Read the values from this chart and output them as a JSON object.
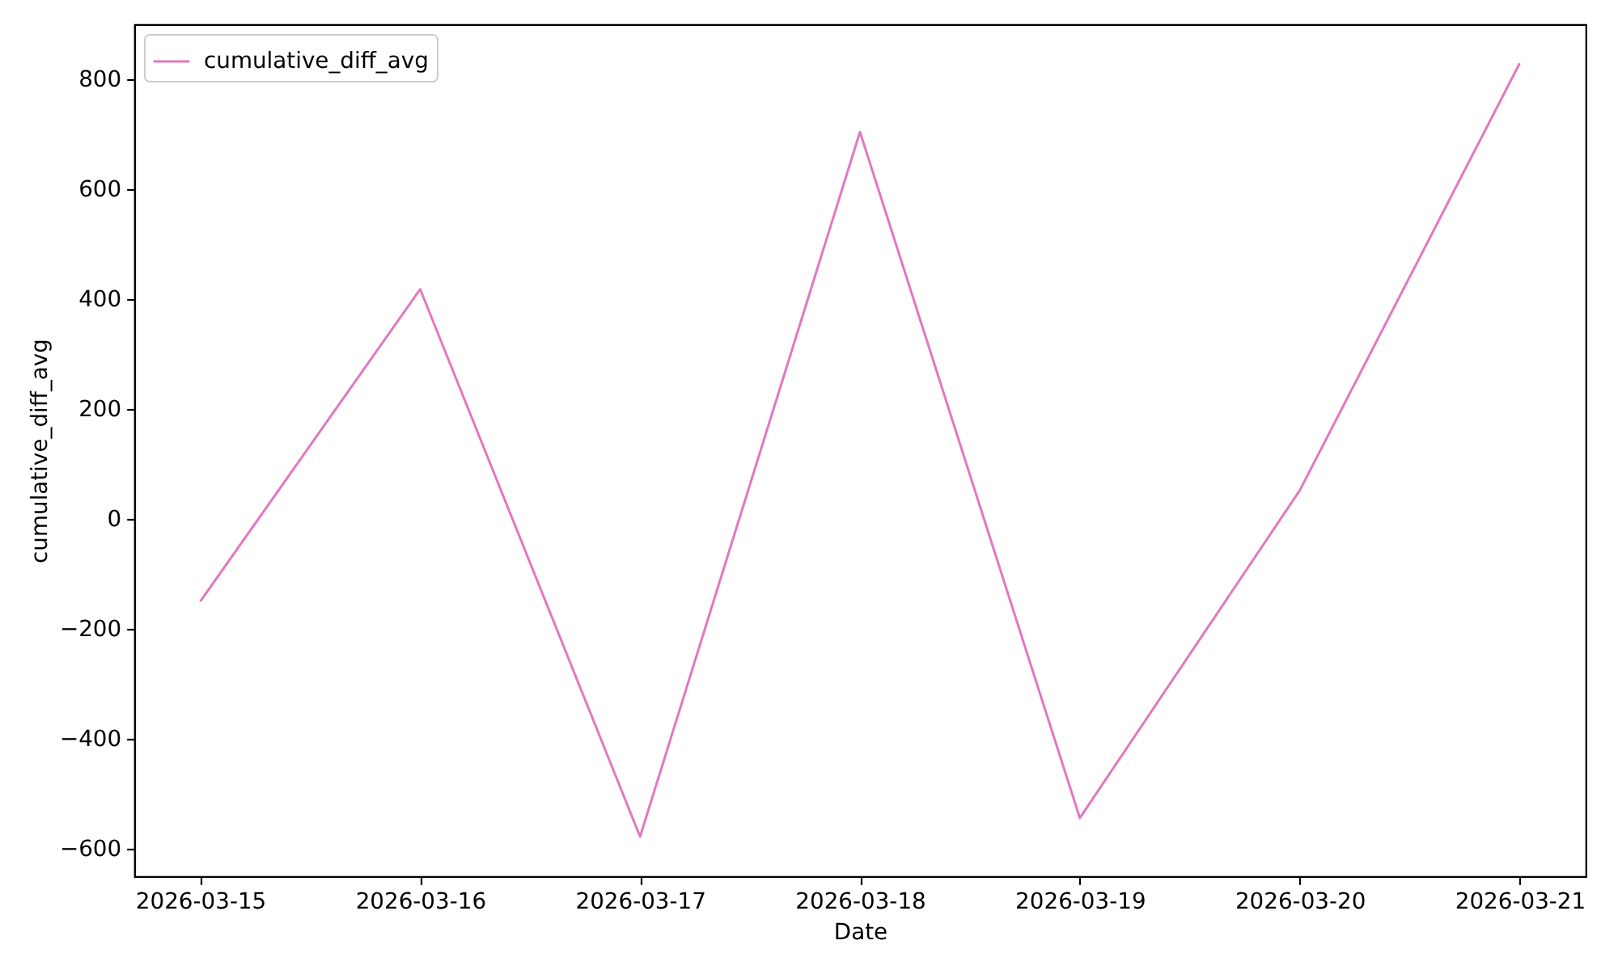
{
  "chart_data": {
    "type": "line",
    "xlabel": "Date",
    "ylabel": "cumulative_diff_avg",
    "x": [
      "2026-03-15",
      "2026-03-16",
      "2026-03-17",
      "2026-03-18",
      "2026-03-19",
      "2026-03-20",
      "2026-03-21"
    ],
    "series": [
      {
        "name": "cumulative_diff_avg",
        "color": "#e377c2",
        "values": [
          -150,
          418,
          -578,
          704,
          -544,
          52,
          829
        ]
      }
    ],
    "xlim": [
      "2026-03-14T16:48",
      "2026-03-21T07:12"
    ],
    "ylim": [
      -650,
      900
    ],
    "xticks": [
      "2026-03-15",
      "2026-03-16",
      "2026-03-17",
      "2026-03-18",
      "2026-03-19",
      "2026-03-20",
      "2026-03-21"
    ],
    "yticks": [
      -600,
      -400,
      -200,
      0,
      200,
      400,
      600,
      800
    ],
    "legend": "top left",
    "grid": false,
    "line_style": "solid",
    "marker": "none"
  }
}
